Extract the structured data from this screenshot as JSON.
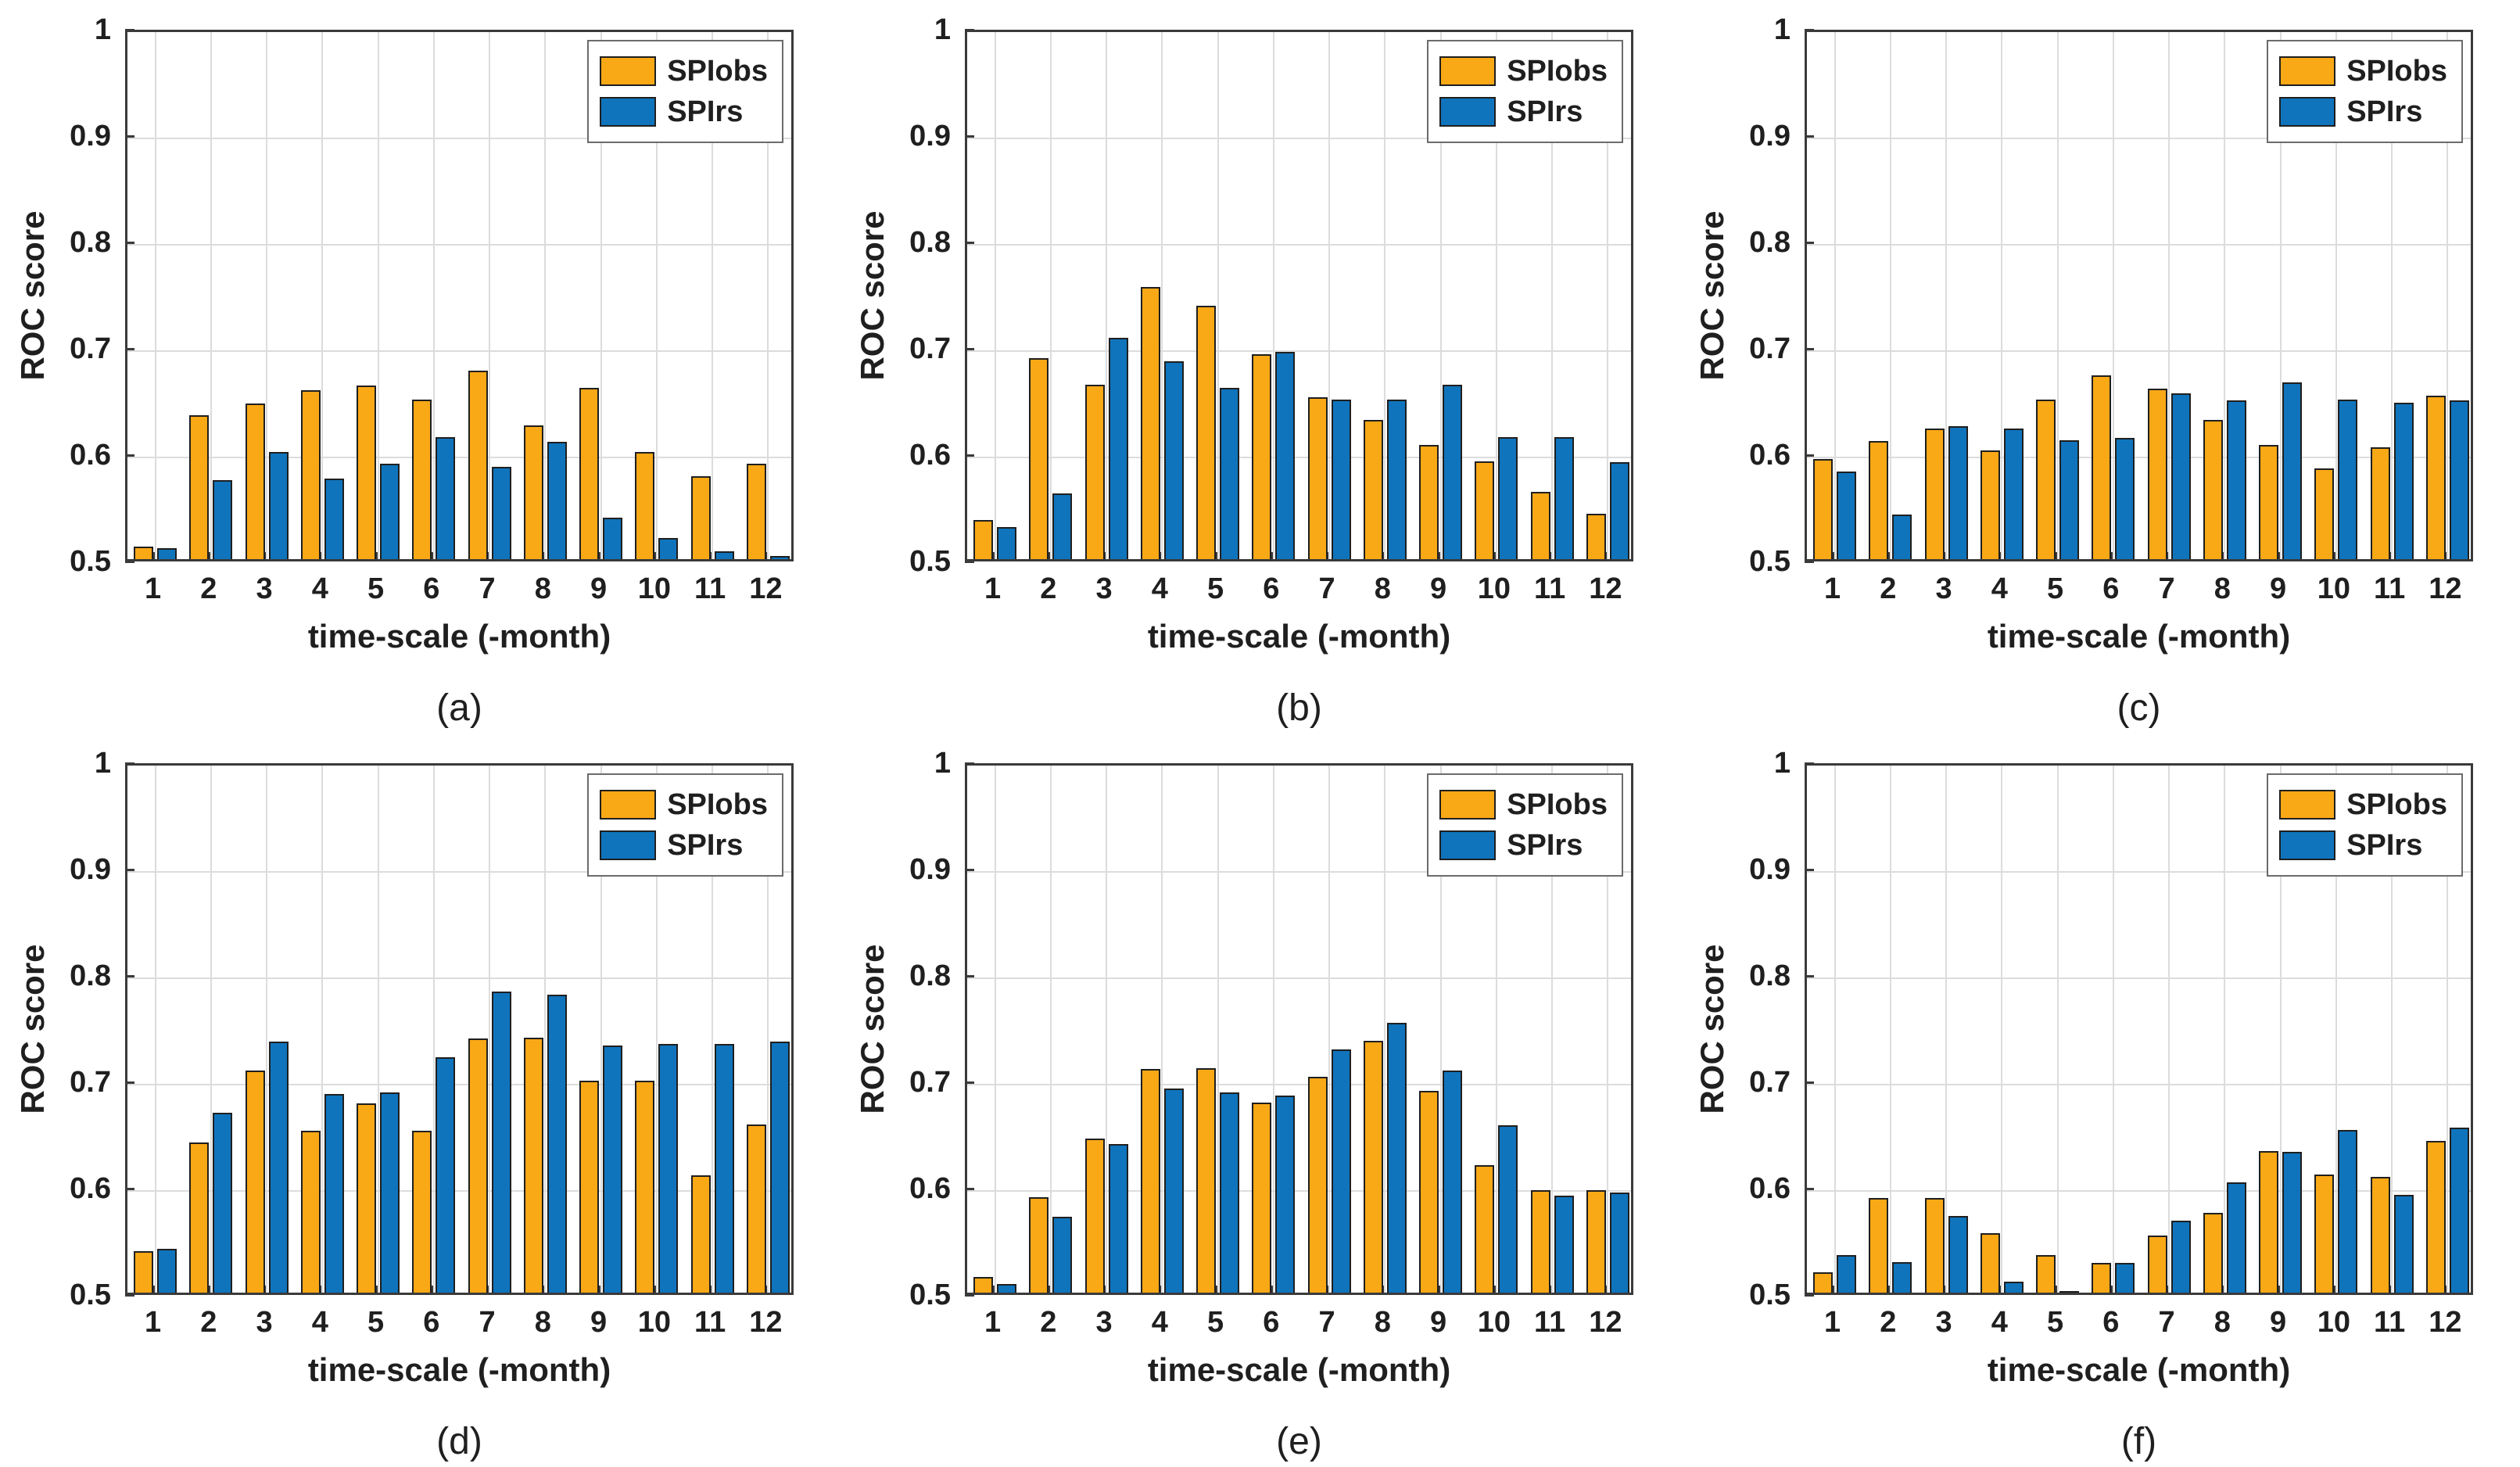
{
  "figure": {
    "background": "#ffffff",
    "rows": 2,
    "cols": 3
  },
  "colors": {
    "spiobs": "#F9A816",
    "spirs": "#0F74BC",
    "bar_edge": "#1f1f1f",
    "grid": "#dcdcdc",
    "axis": "#3a3a3a",
    "text": "#1f1f1f"
  },
  "axes": {
    "ylabel": "ROC score",
    "xlabel": "time-scale (-month)",
    "ylim": [
      0.5,
      1.0
    ],
    "yticks": [
      0.5,
      0.6,
      0.7,
      0.8,
      0.9,
      1.0
    ],
    "ytick_labels": [
      "0.5",
      "0.6",
      "0.7",
      "0.8",
      "0.9",
      "1"
    ],
    "grid": true
  },
  "legend": {
    "position": "top-right",
    "items": [
      {
        "label": "SPIobs",
        "color_key": "spiobs"
      },
      {
        "label": "SPIrs",
        "color_key": "spirs"
      }
    ]
  },
  "chart_data": [
    {
      "type": "bar",
      "panel_label": "(a)",
      "categories": [
        "1",
        "2",
        "3",
        "4",
        "5",
        "6",
        "7",
        "8",
        "9",
        "10",
        "11",
        "12"
      ],
      "xlabel": "time-scale (-month)",
      "ylabel": "ROC score",
      "ylim": [
        0.5,
        1.0
      ],
      "series": [
        {
          "name": "SPIobs",
          "values": [
            0.512,
            0.635,
            0.646,
            0.659,
            0.663,
            0.65,
            0.677,
            0.626,
            0.661,
            0.601,
            0.578,
            0.59
          ]
        },
        {
          "name": "SPIrs",
          "values": [
            0.51,
            0.574,
            0.601,
            0.576,
            0.59,
            0.615,
            0.587,
            0.61,
            0.539,
            0.52,
            0.507,
            0.503
          ]
        }
      ]
    },
    {
      "type": "bar",
      "panel_label": "(b)",
      "categories": [
        "1",
        "2",
        "3",
        "4",
        "5",
        "6",
        "7",
        "8",
        "9",
        "10",
        "11",
        "12"
      ],
      "xlabel": "time-scale (-month)",
      "ylabel": "ROC score",
      "ylim": [
        0.5,
        1.0
      ],
      "series": [
        {
          "name": "SPIobs",
          "values": [
            0.537,
            0.689,
            0.664,
            0.756,
            0.738,
            0.693,
            0.652,
            0.631,
            0.607,
            0.592,
            0.563,
            0.543
          ]
        },
        {
          "name": "SPIrs",
          "values": [
            0.53,
            0.562,
            0.708,
            0.686,
            0.661,
            0.695,
            0.65,
            0.65,
            0.664,
            0.615,
            0.615,
            0.591
          ]
        }
      ]
    },
    {
      "type": "bar",
      "panel_label": "(c)",
      "categories": [
        "1",
        "2",
        "3",
        "4",
        "5",
        "6",
        "7",
        "8",
        "9",
        "10",
        "11",
        "12"
      ],
      "xlabel": "time-scale (-month)",
      "ylabel": "ROC score",
      "ylim": [
        0.5,
        1.0
      ],
      "series": [
        {
          "name": "SPIobs",
          "values": [
            0.594,
            0.611,
            0.623,
            0.602,
            0.65,
            0.673,
            0.66,
            0.631,
            0.607,
            0.585,
            0.605,
            0.654
          ]
        },
        {
          "name": "SPIrs",
          "values": [
            0.582,
            0.542,
            0.625,
            0.623,
            0.612,
            0.614,
            0.656,
            0.649,
            0.666,
            0.65,
            0.647,
            0.649
          ]
        }
      ]
    },
    {
      "type": "bar",
      "panel_label": "(d)",
      "categories": [
        "1",
        "2",
        "3",
        "4",
        "5",
        "6",
        "7",
        "8",
        "9",
        "10",
        "11",
        "12"
      ],
      "xlabel": "time-scale (-month)",
      "ylabel": "ROC score",
      "ylim": [
        0.5,
        1.0
      ],
      "series": [
        {
          "name": "SPIobs",
          "values": [
            0.539,
            0.641,
            0.709,
            0.652,
            0.678,
            0.652,
            0.739,
            0.74,
            0.699,
            0.699,
            0.61,
            0.658
          ]
        },
        {
          "name": "SPIrs",
          "values": [
            0.541,
            0.669,
            0.736,
            0.687,
            0.688,
            0.721,
            0.783,
            0.78,
            0.732,
            0.734,
            0.734,
            0.736
          ]
        }
      ]
    },
    {
      "type": "bar",
      "panel_label": "(e)",
      "categories": [
        "1",
        "2",
        "3",
        "4",
        "5",
        "6",
        "7",
        "8",
        "9",
        "10",
        "11",
        "12"
      ],
      "xlabel": "time-scale (-month)",
      "ylabel": "ROC score",
      "ylim": [
        0.5,
        1.0
      ],
      "series": [
        {
          "name": "SPIobs",
          "values": [
            0.515,
            0.59,
            0.645,
            0.71,
            0.711,
            0.679,
            0.703,
            0.737,
            0.69,
            0.62,
            0.596,
            0.596
          ]
        },
        {
          "name": "SPIrs",
          "values": [
            0.508,
            0.571,
            0.64,
            0.692,
            0.688,
            0.685,
            0.729,
            0.754,
            0.709,
            0.657,
            0.591,
            0.594
          ]
        }
      ]
    },
    {
      "type": "bar",
      "panel_label": "(f)",
      "categories": [
        "1",
        "2",
        "3",
        "4",
        "5",
        "6",
        "7",
        "8",
        "9",
        "10",
        "11",
        "12"
      ],
      "xlabel": "time-scale (-month)",
      "ylabel": "ROC score",
      "ylim": [
        0.5,
        1.0
      ],
      "series": [
        {
          "name": "SPIobs",
          "values": [
            0.519,
            0.589,
            0.589,
            0.556,
            0.535,
            0.528,
            0.554,
            0.575,
            0.633,
            0.611,
            0.609,
            0.643
          ]
        },
        {
          "name": "SPIrs",
          "values": [
            0.535,
            0.529,
            0.572,
            0.51,
            0.501,
            0.528,
            0.568,
            0.604,
            0.632,
            0.653,
            0.592,
            0.655
          ]
        }
      ]
    }
  ]
}
